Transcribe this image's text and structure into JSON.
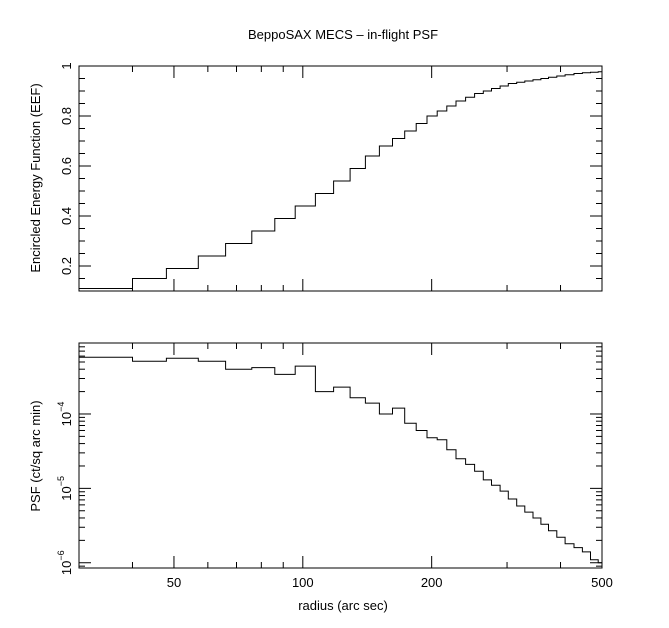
{
  "chart_data": [
    {
      "type": "line",
      "step": true,
      "title": "BeppoSAX MECS – in-flight PSF",
      "xlabel": "radius (arc sec)",
      "ylabel": "Encircled Energy Function (EEF)",
      "xscale": "log",
      "yscale": "linear",
      "xlim": [
        30,
        500
      ],
      "ylim": [
        0.1,
        1.0
      ],
      "yticks": [
        0.2,
        0.4,
        0.6,
        0.8,
        1.0
      ],
      "ytick_labels": [
        "0.2",
        "0.4",
        "0.6",
        "0.8",
        "1"
      ],
      "series": [
        {
          "name": "EEF",
          "x": [
            30,
            40,
            48,
            57,
            66,
            76,
            86,
            96,
            107,
            118,
            129,
            140,
            151,
            162,
            173,
            184,
            195,
            206,
            217,
            228,
            240,
            252,
            264,
            276,
            289,
            302,
            316,
            330,
            345,
            360,
            375,
            392,
            410,
            430,
            450,
            470,
            490
          ],
          "y": [
            0.11,
            0.15,
            0.19,
            0.24,
            0.29,
            0.34,
            0.39,
            0.44,
            0.49,
            0.54,
            0.59,
            0.64,
            0.68,
            0.71,
            0.74,
            0.77,
            0.8,
            0.82,
            0.84,
            0.86,
            0.875,
            0.89,
            0.9,
            0.91,
            0.92,
            0.93,
            0.935,
            0.94,
            0.945,
            0.95,
            0.955,
            0.96,
            0.965,
            0.97,
            0.973,
            0.975,
            0.977
          ]
        }
      ]
    },
    {
      "type": "line",
      "step": true,
      "xlabel": "radius (arc sec)",
      "ylabel": "PSF (ct/sq arc min)",
      "xscale": "log",
      "yscale": "log",
      "xlim": [
        30,
        500
      ],
      "ylim": [
        8.5e-07,
        0.0009
      ],
      "xticks": [
        50,
        100,
        200,
        500
      ],
      "xtick_labels": [
        "50",
        "100",
        "200",
        "500"
      ],
      "ytick_labels": [
        {
          "base": "10",
          "exp": "−6",
          "value": 1e-06
        },
        {
          "base": "10",
          "exp": "−5",
          "value": 1e-05
        },
        {
          "base": "10",
          "exp": "−4",
          "value": 0.0001
        }
      ],
      "series": [
        {
          "name": "PSF",
          "x": [
            30,
            40,
            48,
            57,
            66,
            76,
            86,
            96,
            107,
            118,
            129,
            140,
            151,
            162,
            173,
            184,
            195,
            206,
            217,
            228,
            240,
            252,
            264,
            276,
            289,
            302,
            316,
            330,
            345,
            360,
            375,
            392,
            410,
            430,
            450,
            470,
            490
          ],
          "y": [
            0.00058,
            0.00051,
            0.00056,
            0.00051,
            0.0004,
            0.00042,
            0.00034,
            0.00044,
            0.0002,
            0.00023,
            0.000165,
            0.00014,
            0.0001,
            0.00012,
            7.5e-05,
            6e-05,
            4.8e-05,
            4.5e-05,
            3.3e-05,
            2.5e-05,
            2.1e-05,
            1.7e-05,
            1.3e-05,
            1.1e-05,
            9.2e-06,
            7.2e-06,
            5.8e-06,
            4.8e-06,
            4e-06,
            3.3e-06,
            2.7e-06,
            2.2e-06,
            1.8e-06,
            1.6e-06,
            1.4e-06,
            1.1e-06,
            1e-06
          ]
        }
      ]
    }
  ]
}
